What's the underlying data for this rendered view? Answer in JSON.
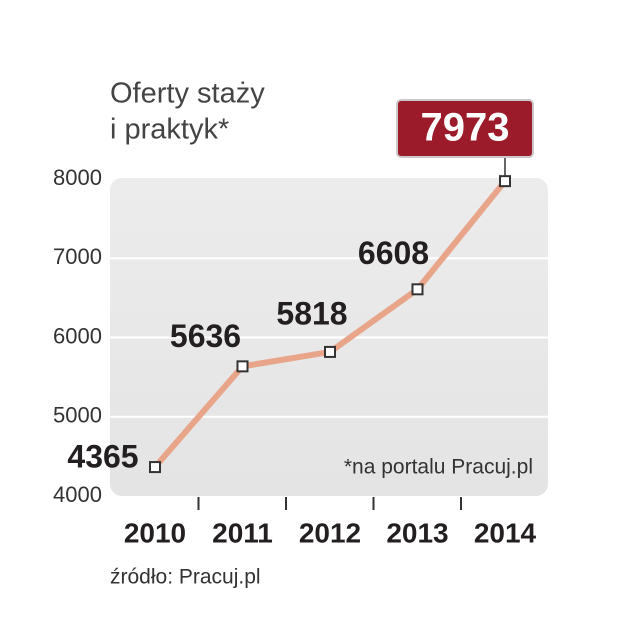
{
  "chart_data": {
    "type": "line",
    "title": [
      "Oferty staży",
      "i praktyk*"
    ],
    "categories": [
      "2010",
      "2011",
      "2012",
      "2013",
      "2014"
    ],
    "values": [
      4365,
      5636,
      5818,
      6608,
      7973
    ],
    "color": "#e8a58a",
    "highlight_color": "#9b1b2b",
    "ylim": [
      4000,
      8000
    ],
    "yticks": [
      4000,
      5000,
      6000,
      7000,
      8000
    ],
    "grid": true,
    "annotation": "*na portalu Pracuj.pl",
    "source": "źródło: Pracuj.pl"
  }
}
